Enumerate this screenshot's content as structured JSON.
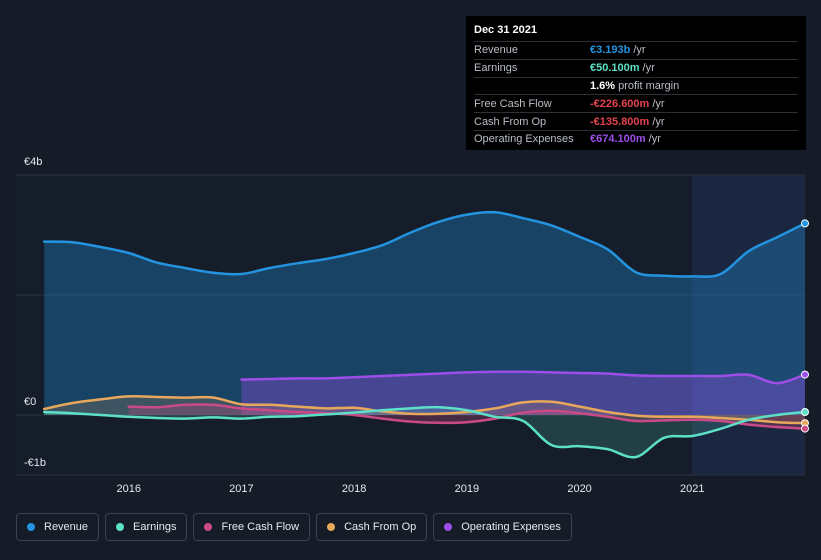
{
  "chart_data": {
    "type": "area",
    "title": "",
    "x_unit": "year",
    "xlim": [
      2015.25,
      2022.0
    ],
    "ylim": [
      -1.0,
      4.0
    ],
    "y_unit": "EUR billions",
    "y_ticks": [
      {
        "value": 4,
        "label": "€4b"
      },
      {
        "value": 0,
        "label": "€0"
      },
      {
        "value": -1,
        "label": "-€1b"
      }
    ],
    "x_ticks": [
      {
        "value": 2016,
        "label": "2016"
      },
      {
        "value": 2017,
        "label": "2017"
      },
      {
        "value": 2018,
        "label": "2018"
      },
      {
        "value": 2019,
        "label": "2019"
      },
      {
        "value": 2020,
        "label": "2020"
      },
      {
        "value": 2021,
        "label": "2021"
      }
    ],
    "grid": true,
    "legend_position": "bottom-left",
    "highlight_start": 2021.0,
    "series": [
      {
        "name": "Revenue",
        "color": "#2394df",
        "points": [
          [
            2015.25,
            2.89
          ],
          [
            2015.5,
            2.88
          ],
          [
            2015.75,
            2.8
          ],
          [
            2016.0,
            2.7
          ],
          [
            2016.25,
            2.54
          ],
          [
            2016.5,
            2.45
          ],
          [
            2016.75,
            2.37
          ],
          [
            2017.0,
            2.35
          ],
          [
            2017.25,
            2.45
          ],
          [
            2017.5,
            2.53
          ],
          [
            2017.75,
            2.6
          ],
          [
            2018.0,
            2.7
          ],
          [
            2018.25,
            2.83
          ],
          [
            2018.5,
            3.04
          ],
          [
            2018.75,
            3.22
          ],
          [
            2019.0,
            3.34
          ],
          [
            2019.25,
            3.38
          ],
          [
            2019.5,
            3.28
          ],
          [
            2019.75,
            3.16
          ],
          [
            2020.0,
            2.97
          ],
          [
            2020.25,
            2.76
          ],
          [
            2020.5,
            2.38
          ],
          [
            2020.75,
            2.32
          ],
          [
            2021.0,
            2.31
          ],
          [
            2021.25,
            2.35
          ],
          [
            2021.5,
            2.73
          ],
          [
            2021.75,
            2.96
          ],
          [
            2022.0,
            3.193
          ]
        ]
      },
      {
        "name": "Earnings",
        "color": "#5de0c8",
        "points": [
          [
            2015.25,
            0.05
          ],
          [
            2015.5,
            0.03
          ],
          [
            2015.75,
            0.0
          ],
          [
            2016.0,
            -0.03
          ],
          [
            2016.25,
            -0.05
          ],
          [
            2016.5,
            -0.06
          ],
          [
            2016.75,
            -0.04
          ],
          [
            2017.0,
            -0.06
          ],
          [
            2017.25,
            -0.03
          ],
          [
            2017.5,
            -0.02
          ],
          [
            2017.75,
            0.01
          ],
          [
            2018.0,
            0.04
          ],
          [
            2018.25,
            0.08
          ],
          [
            2018.5,
            0.11
          ],
          [
            2018.75,
            0.13
          ],
          [
            2019.0,
            0.08
          ],
          [
            2019.25,
            -0.03
          ],
          [
            2019.5,
            -0.1
          ],
          [
            2019.75,
            -0.5
          ],
          [
            2020.0,
            -0.52
          ],
          [
            2020.25,
            -0.57
          ],
          [
            2020.5,
            -0.7
          ],
          [
            2020.75,
            -0.38
          ],
          [
            2021.0,
            -0.35
          ],
          [
            2021.25,
            -0.23
          ],
          [
            2021.5,
            -0.08
          ],
          [
            2021.75,
            0.0
          ],
          [
            2022.0,
            0.0501
          ]
        ]
      },
      {
        "name": "Free Cash Flow",
        "color": "#c94a86",
        "points": [
          [
            2016.0,
            0.14
          ],
          [
            2016.25,
            0.13
          ],
          [
            2016.5,
            0.17
          ],
          [
            2016.75,
            0.17
          ],
          [
            2017.0,
            0.11
          ],
          [
            2017.25,
            0.08
          ],
          [
            2017.5,
            0.05
          ],
          [
            2017.75,
            0.03
          ],
          [
            2018.0,
            0.0
          ],
          [
            2018.25,
            -0.06
          ],
          [
            2018.5,
            -0.11
          ],
          [
            2018.75,
            -0.13
          ],
          [
            2019.0,
            -0.12
          ],
          [
            2019.25,
            -0.06
          ],
          [
            2019.5,
            0.04
          ],
          [
            2019.75,
            0.07
          ],
          [
            2020.0,
            0.03
          ],
          [
            2020.25,
            -0.03
          ],
          [
            2020.5,
            -0.1
          ],
          [
            2020.75,
            -0.09
          ],
          [
            2021.0,
            -0.08
          ],
          [
            2021.25,
            -0.1
          ],
          [
            2021.5,
            -0.16
          ],
          [
            2021.75,
            -0.2
          ],
          [
            2022.0,
            -0.2266
          ]
        ]
      },
      {
        "name": "Cash From Op",
        "color": "#e7a85c",
        "points": [
          [
            2015.25,
            0.1
          ],
          [
            2015.5,
            0.2
          ],
          [
            2015.75,
            0.26
          ],
          [
            2016.0,
            0.31
          ],
          [
            2016.25,
            0.3
          ],
          [
            2016.5,
            0.29
          ],
          [
            2016.75,
            0.29
          ],
          [
            2017.0,
            0.18
          ],
          [
            2017.25,
            0.17
          ],
          [
            2017.5,
            0.14
          ],
          [
            2017.75,
            0.11
          ],
          [
            2018.0,
            0.12
          ],
          [
            2018.25,
            0.06
          ],
          [
            2018.5,
            0.02
          ],
          [
            2018.75,
            0.02
          ],
          [
            2019.0,
            0.05
          ],
          [
            2019.25,
            0.11
          ],
          [
            2019.5,
            0.21
          ],
          [
            2019.75,
            0.22
          ],
          [
            2020.0,
            0.14
          ],
          [
            2020.25,
            0.05
          ],
          [
            2020.5,
            -0.01
          ],
          [
            2020.75,
            -0.03
          ],
          [
            2021.0,
            -0.03
          ],
          [
            2021.25,
            -0.05
          ],
          [
            2021.5,
            -0.08
          ],
          [
            2021.75,
            -0.12
          ],
          [
            2022.0,
            -0.1358
          ]
        ]
      },
      {
        "name": "Operating Expenses",
        "color": "#9d4de8",
        "points": [
          [
            2017.0,
            0.59
          ],
          [
            2017.25,
            0.6
          ],
          [
            2017.5,
            0.61
          ],
          [
            2017.75,
            0.61
          ],
          [
            2018.0,
            0.63
          ],
          [
            2018.25,
            0.65
          ],
          [
            2018.5,
            0.67
          ],
          [
            2018.75,
            0.69
          ],
          [
            2019.0,
            0.71
          ],
          [
            2019.25,
            0.72
          ],
          [
            2019.5,
            0.72
          ],
          [
            2019.75,
            0.71
          ],
          [
            2020.0,
            0.7
          ],
          [
            2020.25,
            0.69
          ],
          [
            2020.5,
            0.66
          ],
          [
            2020.75,
            0.65
          ],
          [
            2021.0,
            0.65
          ],
          [
            2021.25,
            0.65
          ],
          [
            2021.5,
            0.67
          ],
          [
            2021.75,
            0.53
          ],
          [
            2022.0,
            0.6741
          ]
        ]
      }
    ]
  },
  "tooltip": {
    "date": "Dec 31 2021",
    "rows": [
      {
        "label": "Revenue",
        "value": "€3.193b",
        "unit": "/yr",
        "color": "#2394df"
      },
      {
        "label": "Earnings",
        "value": "€50.100m",
        "unit": "/yr",
        "color": "#5de0c8"
      },
      {
        "label": "",
        "value": "1.6%",
        "unit": "profit margin",
        "color": "#ffffff"
      },
      {
        "label": "Free Cash Flow",
        "value": "-€226.600m",
        "unit": "/yr",
        "color": "#e5424f"
      },
      {
        "label": "Cash From Op",
        "value": "-€135.800m",
        "unit": "/yr",
        "color": "#e5424f"
      },
      {
        "label": "Operating Expenses",
        "value": "€674.100m",
        "unit": "/yr",
        "color": "#9d4de8"
      }
    ]
  },
  "legend": [
    {
      "label": "Revenue",
      "color": "#2394df"
    },
    {
      "label": "Earnings",
      "color": "#5de0c8"
    },
    {
      "label": "Free Cash Flow",
      "color": "#c94a86"
    },
    {
      "label": "Cash From Op",
      "color": "#e7a85c"
    },
    {
      "label": "Operating Expenses",
      "color": "#9d4de8"
    }
  ]
}
